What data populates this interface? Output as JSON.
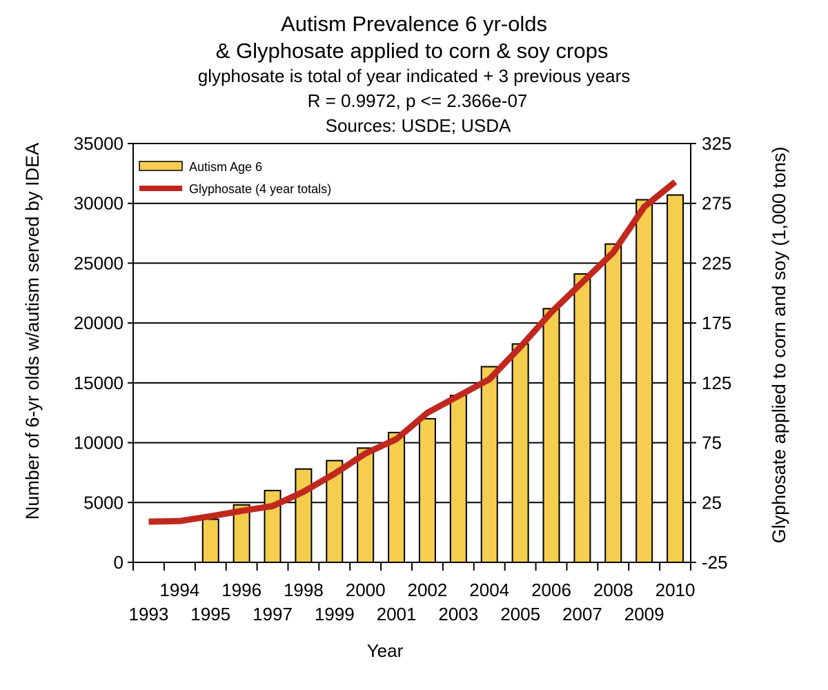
{
  "chart_data": {
    "type": "bar+line",
    "title_lines": [
      "Autism Prevalence 6 yr-olds",
      "& Glyphosate applied to corn & soy crops",
      "glyphosate is total of year indicated + 3 previous years",
      "R = 0.9972, p <= 2.366e-07",
      "Sources: USDE; USDA"
    ],
    "xlabel": "Year",
    "ylabel": "Number of 6-yr olds w/autism served by IDEA",
    "y2label": "Glyphosate applied to corn and soy (1,000 tons)",
    "ylim": [
      0,
      35000
    ],
    "y_ticks": [
      "0",
      "5000",
      "10000",
      "15000",
      "20000",
      "25000",
      "30000",
      "35000"
    ],
    "y2lim": [
      -25,
      325
    ],
    "y2_ticks": [
      "-25",
      "25",
      "75",
      "125",
      "175",
      "225",
      "275",
      "325"
    ],
    "categories": [
      "1993",
      "1994",
      "1995",
      "1996",
      "1997",
      "1998",
      "1999",
      "2000",
      "2001",
      "2002",
      "2003",
      "2004",
      "2005",
      "2006",
      "2007",
      "2008",
      "2009",
      "2010"
    ],
    "grid": "horizontal",
    "legend_position": "top-left",
    "series": [
      {
        "name": "Autism Age 6",
        "type": "bar",
        "axis": "left",
        "color": "#f5cd4f",
        "values": [
          null,
          null,
          3600,
          4800,
          6000,
          7800,
          8500,
          9550,
          10850,
          12000,
          13950,
          16350,
          18250,
          21200,
          24100,
          26600,
          30300,
          30700
        ]
      },
      {
        "name": "Glyphosate (4 year totals)",
        "type": "line",
        "axis": "right",
        "color": "#c0281e",
        "values": [
          9,
          9.5,
          13.5,
          18,
          22,
          34,
          49,
          66,
          78,
          100,
          114,
          128,
          155,
          184,
          209,
          234,
          272,
          293
        ]
      }
    ]
  }
}
